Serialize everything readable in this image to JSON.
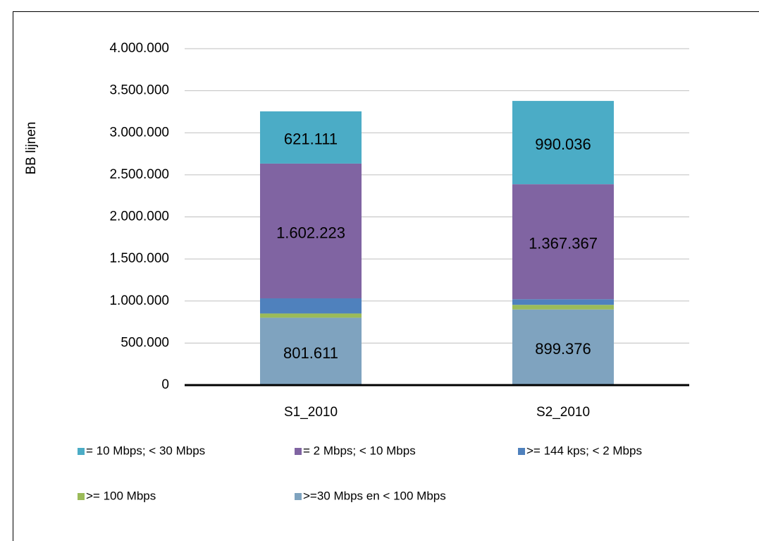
{
  "chart_data": {
    "type": "stacked_bar",
    "y_label": "BB lijnen",
    "categories": [
      "S1_2010",
      "S2_2010"
    ],
    "series": [
      {
        "name": "= 10 Mbps; < 30 Mbps",
        "color": "#4bacc6",
        "values": [
          621111,
          990036
        ],
        "value_labels": [
          "621.111",
          "990.036"
        ]
      },
      {
        "name": "= 2 Mbps; < 10 Mbps",
        "color": "#8064a2",
        "values": [
          1602223,
          1367367
        ],
        "value_labels": [
          "1.602.223",
          "1.367.367"
        ]
      },
      {
        "name": ">= 144  kps; < 2 Mbps",
        "color": "#4f81bd",
        "values": [
          180000,
          67000
        ]
      },
      {
        "name": ">= 100 Mbps",
        "color": "#9bbb59",
        "values": [
          50000,
          55000
        ]
      },
      {
        "name": ">=30 Mbps en < 100 Mbps",
        "color": "#7fa3bf",
        "values": [
          801611,
          899376
        ],
        "value_labels": [
          "801.611",
          "899.376"
        ]
      }
    ],
    "ylim": [
      0,
      4000000
    ],
    "yticks": [
      0,
      {
        "value": 500000,
        "label": "500.000"
      },
      {
        "value": 1000000,
        "label": "1.000.000"
      },
      {
        "value": 1500000,
        "label": "1.500.000"
      },
      {
        "value": 2000000,
        "label": "2.000.000"
      },
      {
        "value": 2500000,
        "label": "2.500.000"
      },
      {
        "value": 3000000,
        "label": "3.000.000"
      },
      {
        "value": 3500000,
        "label": "3.500.000"
      },
      {
        "value": 4000000,
        "label": "4.000.000"
      }
    ],
    "grid": true
  }
}
